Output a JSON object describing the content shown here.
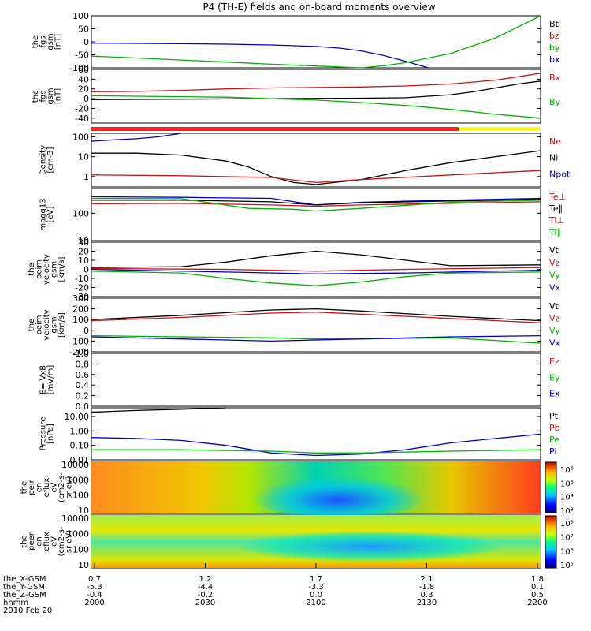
{
  "title": "P4 (TH-E) fields and on-board moments overview",
  "chart_data": {
    "type": "line",
    "title": "P4 (TH-E) fields and on-board moments overview",
    "x_range": [
      "2000",
      "2200"
    ],
    "x_ticks": [
      "2000",
      "2030",
      "2100",
      "2130",
      "2200"
    ],
    "footer": {
      "rows": [
        {
          "label": "the_X-GSM",
          "values": [
            "0.7",
            "1.2",
            "1.7",
            "2.1",
            "1.8"
          ]
        },
        {
          "label": "the_Y-GSM",
          "values": [
            "-5.3",
            "-4.4",
            "-3.3",
            "-1.8",
            "0.1"
          ]
        },
        {
          "label": "the_Z-GSM",
          "values": [
            "-0.4",
            "-0.2",
            "0.0",
            "0.3",
            "0.5"
          ]
        },
        {
          "label": "hhmm",
          "values": [
            "2000",
            "2030",
            "2100",
            "2130",
            "2200"
          ]
        }
      ],
      "date": "2010 Feb 20"
    },
    "panels": [
      {
        "ylabel": [
          "the",
          "fgs",
          "gsm",
          "[nT]"
        ],
        "yticks": [
          "100",
          "50",
          "0",
          "-50",
          "-100"
        ],
        "ylim": [
          -100,
          100
        ],
        "legend": [
          {
            "label": "Bt",
            "color": "#000000"
          },
          {
            "label": "bz",
            "color": "#c81414"
          },
          {
            "label": "by",
            "color": "#00b400"
          },
          {
            "label": "bx",
            "color": "#0000c8"
          }
        ],
        "series": [
          {
            "color": "#0000c8",
            "x": [
              0,
              0.1,
              0.2,
              0.3,
              0.4,
              0.5,
              0.55,
              0.6,
              0.65,
              0.7,
              0.75
            ],
            "y": [
              -5,
              -6,
              -7,
              -9,
              -12,
              -18,
              -24,
              -35,
              -52,
              -75,
              -100
            ]
          },
          {
            "color": "#00b400",
            "x": [
              0,
              0.1,
              0.2,
              0.3,
              0.4,
              0.5,
              0.6,
              0.65,
              0.7,
              0.8,
              0.9,
              1.0
            ],
            "y": [
              -55,
              -62,
              -70,
              -78,
              -86,
              -93,
              -100,
              -92,
              -80,
              -45,
              15,
              100
            ]
          }
        ]
      },
      {
        "ylabel": [
          "the",
          "fgs",
          "gsm",
          "[nT]"
        ],
        "yticks": [
          "60",
          "40",
          "20",
          "0",
          "-20",
          "-40"
        ],
        "ylim": [
          -50,
          60
        ],
        "legend": [
          {
            "label": "Bx",
            "color": "#c81414"
          },
          {
            "label": "By",
            "color": "#00b400"
          }
        ],
        "series": [
          {
            "color": "#c81414",
            "x": [
              0,
              0.1,
              0.2,
              0.3,
              0.4,
              0.5,
              0.6,
              0.7,
              0.8,
              0.9,
              0.95,
              1.0
            ],
            "y": [
              14,
              15,
              17,
              20,
              22,
              23,
              24,
              26,
              30,
              38,
              45,
              52
            ]
          },
          {
            "color": "#000000",
            "x": [
              0,
              0.2,
              0.4,
              0.6,
              0.7,
              0.75,
              0.8,
              0.85,
              0.9,
              0.95,
              1.0
            ],
            "y": [
              -2,
              -1,
              0,
              1,
              2,
              5,
              8,
              14,
              22,
              30,
              36
            ]
          },
          {
            "color": "#00b400",
            "x": [
              0,
              0.1,
              0.2,
              0.3,
              0.4,
              0.5,
              0.6,
              0.7,
              0.8,
              0.9,
              1.0
            ],
            "y": [
              6,
              5,
              4,
              3,
              0,
              -3,
              -8,
              -14,
              -22,
              -32,
              -40
            ]
          }
        ]
      },
      {
        "ylabel": [
          "Density",
          "[cm-3]"
        ],
        "yticks": [
          "100",
          "10",
          "1"
        ],
        "ylim": [
          0.3,
          150
        ],
        "log": true,
        "legend": [
          {
            "label": "Ne",
            "color": "#c81414"
          },
          {
            "label": "Ni",
            "color": "#000000"
          },
          {
            "label": "Npot",
            "color": "#0000c8"
          }
        ],
        "series": [
          {
            "color": "#0000c8",
            "x": [
              0,
              0.05,
              0.1,
              0.15,
              0.2
            ],
            "y": [
              60,
              70,
              80,
              100,
              150
            ]
          },
          {
            "color": "#000000",
            "x": [
              0,
              0.1,
              0.2,
              0.3,
              0.35,
              0.4,
              0.45,
              0.5,
              0.6,
              0.7,
              0.8,
              0.9,
              1.0
            ],
            "y": [
              15,
              15,
              12,
              6,
              3,
              1,
              0.5,
              0.4,
              0.7,
              2,
              5,
              10,
              20
            ]
          },
          {
            "color": "#c81414",
            "x": [
              0,
              0.2,
              0.4,
              0.5,
              0.6,
              0.8,
              1.0
            ],
            "y": [
              1.2,
              1.1,
              0.9,
              0.5,
              0.7,
              1.2,
              2
            ]
          }
        ]
      },
      {
        "ylabel": [
          "magg13",
          "[eV]"
        ],
        "yticks": [
          "100",
          "10"
        ],
        "ylim": [
          10,
          800
        ],
        "log": true,
        "legend": [
          {
            "label": "Te⊥",
            "color": "#c81414"
          },
          {
            "label": "Te∥",
            "color": "#000000"
          },
          {
            "label": "Ti⊥",
            "color": "#c81414"
          },
          {
            "label": "Ti∥",
            "color": "#00b400"
          }
        ],
        "series": [
          {
            "color": "#0000c8",
            "x": [
              0,
              0.2,
              0.4,
              0.5,
              0.6,
              0.8,
              1.0
            ],
            "y": [
              400,
              380,
              350,
              200,
              250,
              300,
              350
            ]
          },
          {
            "color": "#000000",
            "x": [
              0,
              0.2,
              0.4,
              0.5,
              0.6,
              0.8,
              1.0
            ],
            "y": [
              300,
              300,
              260,
              200,
              240,
              280,
              320
            ]
          },
          {
            "color": "#c81414",
            "x": [
              0,
              0.2,
              0.4,
              0.5,
              0.6,
              0.8,
              1.0
            ],
            "y": [
              220,
              230,
              200,
              180,
              200,
              230,
              260
            ]
          },
          {
            "color": "#00b400",
            "x": [
              0,
              0.2,
              0.35,
              0.45,
              0.5,
              0.6,
              0.8,
              1.0
            ],
            "y": [
              350,
              340,
              150,
              140,
              120,
              150,
              250,
              300
            ]
          }
        ]
      },
      {
        "ylabel": [
          "the",
          "peim",
          "velocity",
          "gsm",
          "[km/s]"
        ],
        "yticks": [
          "30",
          "20",
          "10",
          "0",
          "-10",
          "-20",
          "-30"
        ],
        "ylim": [
          -30,
          30
        ],
        "legend": [
          {
            "label": "Vt",
            "color": "#000000"
          },
          {
            "label": "Vz",
            "color": "#c81414"
          },
          {
            "label": "Vy",
            "color": "#00b400"
          },
          {
            "label": "Vx",
            "color": "#0000c8"
          }
        ],
        "series": [
          {
            "color": "#000000",
            "x": [
              0,
              0.2,
              0.3,
              0.4,
              0.5,
              0.6,
              0.7,
              0.8,
              1.0
            ],
            "y": [
              2,
              3,
              8,
              15,
              20,
              16,
              10,
              4,
              5
            ]
          },
          {
            "color": "#c81414",
            "x": [
              0,
              0.3,
              0.5,
              0.7,
              1.0
            ],
            "y": [
              1,
              0,
              -2,
              0,
              2
            ]
          },
          {
            "color": "#00b400",
            "x": [
              0,
              0.2,
              0.3,
              0.4,
              0.5,
              0.6,
              0.7,
              0.8,
              1.0
            ],
            "y": [
              -2,
              -4,
              -10,
              -15,
              -18,
              -14,
              -8,
              -4,
              -3
            ]
          },
          {
            "color": "#0000c8",
            "x": [
              0,
              0.3,
              0.5,
              0.7,
              1.0
            ],
            "y": [
              0,
              -3,
              -5,
              -4,
              -1
            ]
          }
        ]
      },
      {
        "ylabel": [
          "the",
          "peim",
          "velocity",
          "gsm",
          "[km/s]"
        ],
        "yticks": [
          "300",
          "200",
          "100",
          "0",
          "-100",
          "-200"
        ],
        "ylim": [
          -200,
          300
        ],
        "legend": [
          {
            "label": "Vt",
            "color": "#000000"
          },
          {
            "label": "Vz",
            "color": "#c81414"
          },
          {
            "label": "Vy",
            "color": "#00b400"
          },
          {
            "label": "Vx",
            "color": "#0000c8"
          }
        ],
        "series": [
          {
            "color": "#000000",
            "x": [
              0,
              0.2,
              0.4,
              0.5,
              0.6,
              0.8,
              1.0
            ],
            "y": [
              100,
              140,
              190,
              200,
              180,
              130,
              90
            ]
          },
          {
            "color": "#c81414",
            "x": [
              0,
              0.2,
              0.4,
              0.5,
              0.6,
              0.8,
              1.0
            ],
            "y": [
              90,
              120,
              160,
              170,
              150,
              110,
              70
            ]
          },
          {
            "color": "#00b400",
            "x": [
              0,
              0.2,
              0.4,
              0.5,
              0.6,
              0.8,
              1.0
            ],
            "y": [
              -50,
              -60,
              -70,
              -80,
              -80,
              -70,
              -120
            ]
          },
          {
            "color": "#0000c8",
            "x": [
              0,
              0.2,
              0.4,
              0.5,
              0.6,
              0.8,
              1.0
            ],
            "y": [
              -60,
              -80,
              -100,
              -90,
              -80,
              -60,
              -50
            ]
          }
        ]
      },
      {
        "ylabel": [
          "E=-VxB",
          "[mV/m]"
        ],
        "yticks": [
          "1.0",
          "0.8",
          "0.6",
          "0.4",
          "0.2",
          "0.0"
        ],
        "ylim": [
          0,
          1
        ],
        "legend": [
          {
            "label": "Ez",
            "color": "#c81414"
          },
          {
            "label": "Ey",
            "color": "#00b400"
          },
          {
            "label": "Ex",
            "color": "#0000c8"
          }
        ],
        "series": []
      },
      {
        "ylabel": [
          "Pressure",
          "[nPa]"
        ],
        "yticks": [
          "10.00",
          "1.00",
          "0.10",
          "0.01"
        ],
        "ylim": [
          0.01,
          40
        ],
        "log": true,
        "legend": [
          {
            "label": "Pt",
            "color": "#000000"
          },
          {
            "label": "Pb",
            "color": "#c81414"
          },
          {
            "label": "Pe",
            "color": "#00b400"
          },
          {
            "label": "Pi",
            "color": "#0000c8"
          }
        ],
        "series": [
          {
            "color": "#000000",
            "x": [
              0,
              0.1,
              0.2,
              0.3
            ],
            "y": [
              20,
              26,
              32,
              40
            ]
          },
          {
            "color": "#0000c8",
            "x": [
              0,
              0.1,
              0.2,
              0.3,
              0.4,
              0.5,
              0.6,
              0.7,
              0.8,
              0.9,
              1.0
            ],
            "y": [
              0.35,
              0.3,
              0.22,
              0.1,
              0.03,
              0.02,
              0.025,
              0.05,
              0.15,
              0.3,
              0.6
            ]
          },
          {
            "color": "#00b400",
            "x": [
              0,
              0.2,
              0.4,
              0.5,
              0.6,
              0.8,
              1.0
            ],
            "y": [
              0.05,
              0.05,
              0.04,
              0.03,
              0.03,
              0.04,
              0.05
            ]
          }
        ]
      },
      {
        "ylabel": [
          "the",
          "peir",
          "en",
          "eflux",
          "eV",
          "(cm2-s-",
          "sr-eV)"
        ],
        "yticks": [
          "10000",
          "1000",
          "100",
          "10"
        ],
        "spectrogram": true,
        "colorbar_ticks": [
          "10⁶",
          "10⁵",
          "10⁴",
          "10³"
        ]
      },
      {
        "ylabel": [
          "the",
          "peer",
          "en",
          "eflux",
          "eV",
          "(cm2-s-",
          "sr-eV)"
        ],
        "yticks": [
          "10000",
          "1000",
          "100",
          "10"
        ],
        "spectrogram": true,
        "colorbar_ticks": [
          "10⁸",
          "10⁷",
          "10⁶",
          "10⁵"
        ]
      }
    ]
  }
}
